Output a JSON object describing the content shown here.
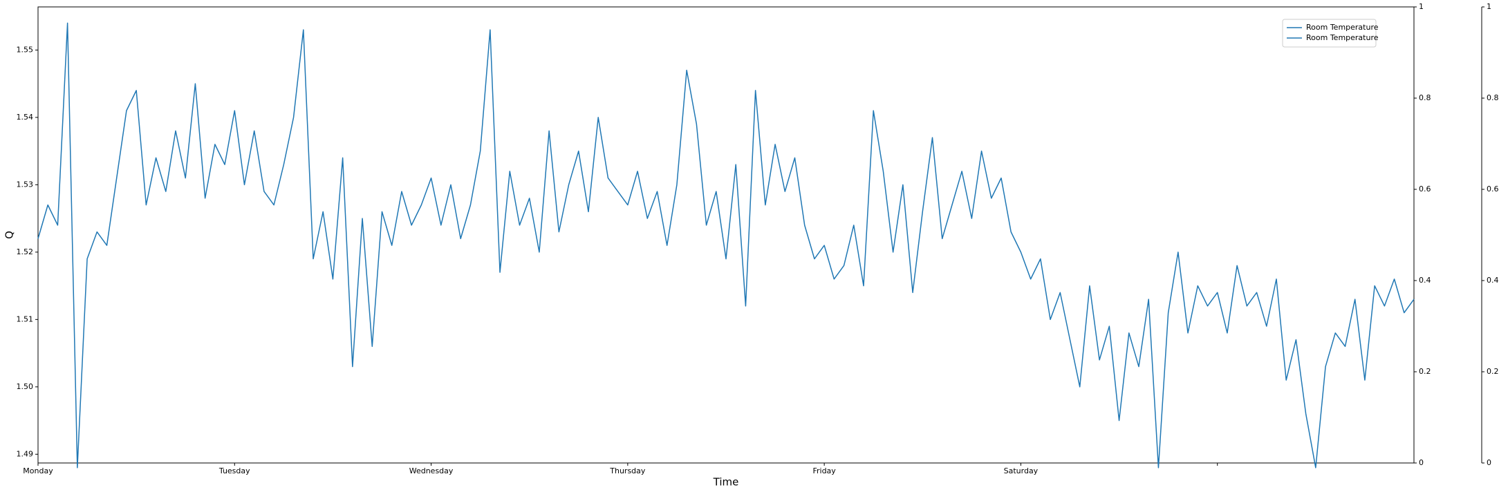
{
  "chart_data": {
    "type": "line",
    "xlabel": "Time",
    "ylabel": "Q",
    "xlim": [
      0,
      7
    ],
    "xticks": [
      {
        "value": 0,
        "label": "Monday"
      },
      {
        "value": 1,
        "label": "Tuesday"
      },
      {
        "value": 2,
        "label": "Wednesday"
      },
      {
        "value": 3,
        "label": "Thursday"
      },
      {
        "value": 4,
        "label": "Friday"
      },
      {
        "value": 5,
        "label": "Saturday"
      },
      {
        "value": 6,
        "label": null
      }
    ],
    "ylim": [
      1.4887,
      1.5564
    ],
    "yticks": [
      1.49,
      {
        "value": 1.5,
        "label": "1.50"
      },
      1.51,
      1.52,
      1.53,
      1.54,
      1.55
    ],
    "y2lim": [
      0,
      1
    ],
    "y2ticks": [
      0,
      0.2,
      0.4,
      0.6,
      0.8,
      1
    ],
    "y3lim": [
      0,
      1
    ],
    "y3ticks": [
      0,
      0.2,
      0.4,
      0.6,
      0.8,
      1
    ],
    "legend": "upper right",
    "x": [
      0,
      0.05,
      0.1,
      0.15,
      0.2,
      0.25,
      0.3,
      0.35,
      0.4,
      0.45,
      0.5,
      0.55,
      0.6,
      0.65,
      0.7,
      0.75,
      0.8,
      0.85,
      0.9,
      0.95,
      1,
      1.05,
      1.1,
      1.15,
      1.2,
      1.25,
      1.3,
      1.35,
      1.4,
      1.45,
      1.5,
      1.55,
      1.6,
      1.65,
      1.7,
      1.75,
      1.8,
      1.85,
      1.9,
      1.95,
      2,
      2.05,
      2.1,
      2.15,
      2.2,
      2.25,
      2.3,
      2.35,
      2.4,
      2.45,
      2.5,
      2.55,
      2.6,
      2.65,
      2.7,
      2.75,
      2.8,
      2.85,
      2.9,
      2.95,
      3,
      3.05,
      3.1,
      3.15,
      3.2,
      3.25,
      3.3,
      3.35,
      3.4,
      3.45,
      3.5,
      3.55,
      3.6,
      3.65,
      3.7,
      3.75,
      3.8,
      3.85,
      3.9,
      3.95,
      4,
      4.05,
      4.1,
      4.15,
      4.2,
      4.25,
      4.3,
      4.35,
      4.4,
      4.45,
      4.5,
      4.55,
      4.6,
      4.65,
      4.7,
      4.75,
      4.8,
      4.85,
      4.9,
      4.95,
      5,
      5.05,
      5.1,
      5.15,
      5.2,
      5.25,
      5.3,
      5.35,
      5.4,
      5.45,
      5.5,
      5.55,
      5.6,
      5.65,
      5.7,
      5.75,
      5.8,
      5.85,
      5.9,
      5.95,
      6,
      6.05,
      6.1,
      6.15,
      6.2,
      6.25,
      6.3,
      6.35,
      6.4,
      6.45,
      6.5,
      6.55,
      6.6,
      6.65,
      6.7,
      6.75,
      6.8,
      6.85,
      6.9,
      6.95,
      7
    ],
    "series": [
      {
        "name": "Room Temperature",
        "color": "#1f77b4",
        "axis": "y",
        "values": [
          1.522,
          1.527,
          1.524,
          1.554,
          1.488,
          1.519,
          1.523,
          1.521,
          1.531,
          1.541,
          1.544,
          1.527,
          1.534,
          1.529,
          1.538,
          1.531,
          1.545,
          1.528,
          1.536,
          1.533,
          1.541,
          1.53,
          1.538,
          1.529,
          1.527,
          1.533,
          1.54,
          1.553,
          1.519,
          1.526,
          1.516,
          1.534,
          1.503,
          1.525,
          1.506,
          1.526,
          1.521,
          1.529,
          1.524,
          1.527,
          1.531,
          1.524,
          1.53,
          1.522,
          1.527,
          1.535,
          1.553,
          1.517,
          1.532,
          1.524,
          1.528,
          1.52,
          1.538,
          1.523,
          1.53,
          1.535,
          1.526,
          1.54,
          1.531,
          1.529,
          1.527,
          1.532,
          1.525,
          1.529,
          1.521,
          1.53,
          1.547,
          1.539,
          1.524,
          1.529,
          1.519,
          1.533,
          1.512,
          1.544,
          1.527,
          1.536,
          1.529,
          1.534,
          1.524,
          1.519,
          1.521,
          1.516,
          1.518,
          1.524,
          1.515,
          1.541,
          1.532,
          1.52,
          1.53,
          1.514,
          1.526,
          1.537,
          1.522,
          1.527,
          1.532,
          1.525,
          1.535,
          1.528,
          1.531,
          1.523,
          1.52,
          1.516,
          1.519,
          1.51,
          1.514,
          1.507,
          1.5,
          1.515,
          1.504,
          1.509,
          1.495,
          1.508,
          1.503,
          1.513,
          1.488,
          1.511,
          1.52,
          1.508,
          1.515,
          1.512,
          1.514,
          1.508,
          1.518,
          1.512,
          1.514,
          1.509,
          1.516,
          1.501,
          1.507,
          1.496,
          1.488,
          1.503,
          1.508,
          1.506,
          1.513,
          1.501,
          1.515,
          1.512,
          1.516,
          1.511,
          1.513
        ]
      },
      {
        "name": "Room Temperature",
        "color": "#1f77b4",
        "axis": "y2",
        "values": [
          null,
          null,
          null,
          null,
          null,
          null,
          null,
          null,
          null,
          null,
          null,
          null,
          null,
          null,
          null,
          null,
          null,
          null,
          null,
          null,
          null,
          null,
          null,
          null,
          null,
          null,
          null,
          null,
          null,
          null,
          null,
          null,
          null,
          null,
          null,
          null,
          null,
          null,
          null,
          null,
          null,
          null,
          null,
          null,
          null,
          null,
          null,
          null,
          null,
          null,
          null,
          null,
          null,
          null,
          null,
          null,
          null,
          null,
          null,
          null,
          null,
          null,
          null,
          null,
          null,
          null,
          null,
          null,
          null,
          null,
          null,
          null,
          null,
          null,
          null,
          null,
          null,
          null,
          null,
          null,
          null,
          null,
          null,
          null,
          null,
          null,
          null,
          null,
          null,
          null,
          null,
          null,
          null,
          null,
          null,
          null,
          null,
          null,
          null,
          null,
          null,
          null,
          null,
          null,
          null,
          null,
          null,
          null,
          null,
          null,
          null,
          null,
          null,
          null,
          null,
          null,
          null,
          null,
          null,
          null,
          null,
          null,
          null,
          null,
          null,
          null,
          null,
          null,
          null,
          null,
          null,
          null,
          null,
          null,
          null,
          null,
          null,
          null,
          null,
          null,
          null
        ]
      }
    ]
  }
}
